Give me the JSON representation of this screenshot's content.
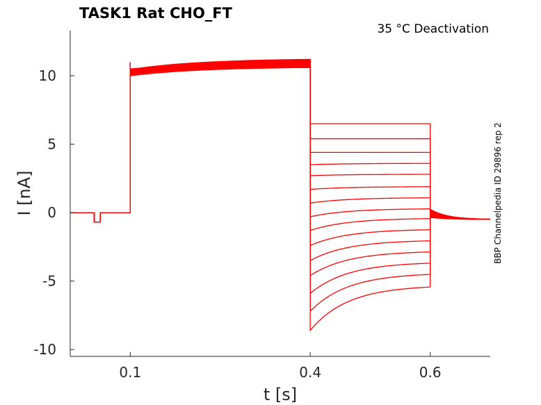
{
  "chart_data": {
    "type": "line",
    "title": "TASK1  Rat  CHO_FT",
    "annotation": "35 °C  Deactivation",
    "side_label": "BBP Channelpedia ID 29896 rep 2",
    "xlabel": "t [s]",
    "ylabel": "I [nA]",
    "xlim": [
      0.0,
      0.7
    ],
    "ylim": [
      -10.5,
      13.3
    ],
    "x_ticks": [
      0.1,
      0.4,
      0.6
    ],
    "x_tick_labels": [
      "0.1",
      "0.4",
      "0.6"
    ],
    "y_ticks": [
      10,
      5,
      0,
      -5,
      -10
    ],
    "y_tick_labels": [
      "10",
      "5",
      "0",
      "-5",
      "-10"
    ],
    "color": "#ff0000",
    "protocol": {
      "holding_current": 0.0,
      "test_pulse": {
        "start": 0.04,
        "end": 0.05,
        "current": -0.7
      },
      "prepulse": {
        "start": 0.1,
        "end": 0.4,
        "start_current_range": [
          10.0,
          10.5
        ],
        "end_current_range": [
          10.6,
          11.2
        ]
      },
      "deactivation_step": {
        "start": 0.4,
        "end": 0.6
      },
      "tail": {
        "start": 0.6,
        "end": 0.7,
        "settle_current": -0.5
      }
    },
    "series": [
      {
        "initial": -8.6,
        "steady": -5.3
      },
      {
        "initial": -7.2,
        "steady": -4.4
      },
      {
        "initial": -5.9,
        "steady": -3.6
      },
      {
        "initial": -4.6,
        "steady": -2.8
      },
      {
        "initial": -3.5,
        "steady": -2.0
      },
      {
        "initial": -2.4,
        "steady": -1.2
      },
      {
        "initial": -1.3,
        "steady": -0.4
      },
      {
        "initial": -0.3,
        "steady": 0.3
      },
      {
        "initial": 0.7,
        "steady": 1.1
      },
      {
        "initial": 1.7,
        "steady": 1.9
      },
      {
        "initial": 2.7,
        "steady": 2.8
      },
      {
        "initial": 3.5,
        "steady": 3.6
      },
      {
        "initial": 4.4,
        "steady": 4.4
      },
      {
        "initial": 5.4,
        "steady": 5.4
      },
      {
        "initial": 6.5,
        "steady": 6.5
      }
    ]
  }
}
